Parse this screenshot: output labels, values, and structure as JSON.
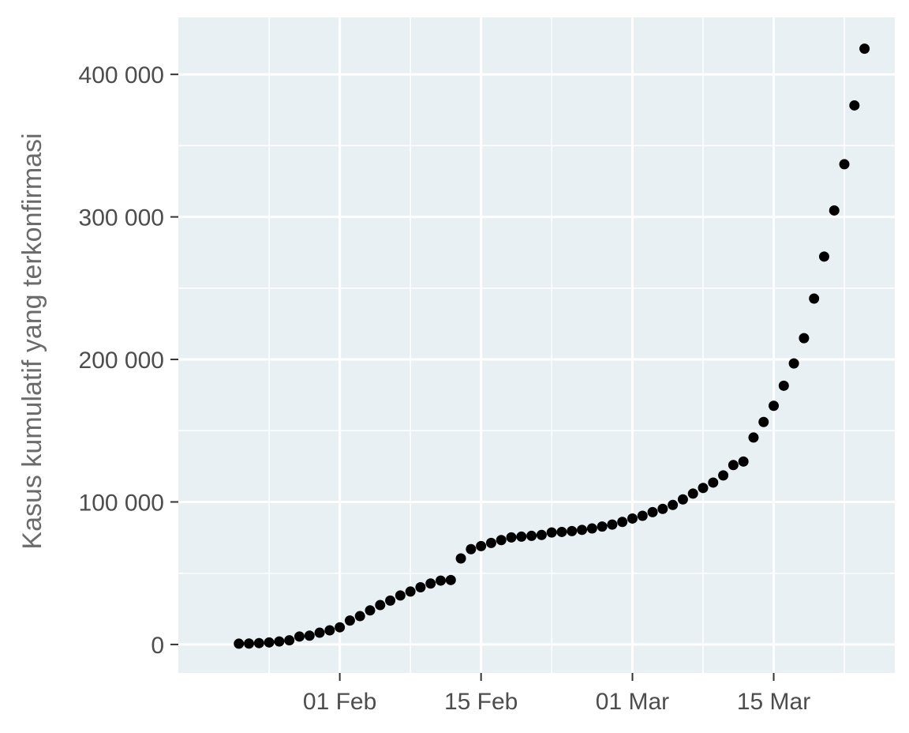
{
  "chart_data": {
    "type": "scatter",
    "title": "",
    "xlabel": "",
    "ylabel": "Kasus kumulatif yang terkonfirmasi",
    "x_type": "date",
    "xlim": [
      "2020-01-16",
      "2020-03-27"
    ],
    "ylim": [
      -20000,
      440000
    ],
    "x_ticks": [
      {
        "date": "2020-02-01",
        "label": "01 Feb"
      },
      {
        "date": "2020-02-15",
        "label": "15 Feb"
      },
      {
        "date": "2020-03-01",
        "label": "01 Mar"
      },
      {
        "date": "2020-03-15",
        "label": "15 Mar"
      }
    ],
    "x_minor_gridlines": [
      "2020-01-25",
      "2020-02-08",
      "2020-02-22",
      "2020-03-08",
      "2020-03-22"
    ],
    "y_ticks": [
      {
        "value": 0,
        "label": "0"
      },
      {
        "value": 100000,
        "label": "100 000"
      },
      {
        "value": 200000,
        "label": "200 000"
      },
      {
        "value": 300000,
        "label": "300 000"
      },
      {
        "value": 400000,
        "label": "400 000"
      }
    ],
    "y_minor_gridlines": [
      50000,
      150000,
      250000,
      350000
    ],
    "grid": true,
    "colors": {
      "panel": "#e8f0f4",
      "grid": "#ffffff",
      "point": "#000000"
    },
    "series": [
      {
        "x": [
          "2020-01-22",
          "2020-01-23",
          "2020-01-24",
          "2020-01-25",
          "2020-01-26",
          "2020-01-27",
          "2020-01-28",
          "2020-01-29",
          "2020-01-30",
          "2020-01-31",
          "2020-02-01",
          "2020-02-02",
          "2020-02-03",
          "2020-02-04",
          "2020-02-05",
          "2020-02-06",
          "2020-02-07",
          "2020-02-08",
          "2020-02-09",
          "2020-02-10",
          "2020-02-11",
          "2020-02-12",
          "2020-02-13",
          "2020-02-14",
          "2020-02-15",
          "2020-02-16",
          "2020-02-17",
          "2020-02-18",
          "2020-02-19",
          "2020-02-20",
          "2020-02-21",
          "2020-02-22",
          "2020-02-23",
          "2020-02-24",
          "2020-02-25",
          "2020-02-26",
          "2020-02-27",
          "2020-02-28",
          "2020-02-29",
          "2020-03-01",
          "2020-03-02",
          "2020-03-03",
          "2020-03-04",
          "2020-03-05",
          "2020-03-06",
          "2020-03-07",
          "2020-03-08",
          "2020-03-09",
          "2020-03-10",
          "2020-03-11",
          "2020-03-12",
          "2020-03-13",
          "2020-03-14",
          "2020-03-15",
          "2020-03-16",
          "2020-03-17",
          "2020-03-18",
          "2020-03-19",
          "2020-03-20",
          "2020-03-21",
          "2020-03-22",
          "2020-03-23",
          "2020-03-24"
        ],
        "y": [
          555,
          654,
          941,
          1434,
          2118,
          2927,
          5578,
          6166,
          8234,
          9927,
          12038,
          16787,
          19881,
          23892,
          27635,
          30794,
          34391,
          37120,
          40150,
          42762,
          44802,
          45221,
          60368,
          66885,
          69030,
          71224,
          73258,
          75136,
          75639,
          76197,
          76819,
          78572,
          78958,
          79561,
          80406,
          81388,
          82746,
          84112,
          86011,
          88369,
          90306,
          92840,
          95120,
          97886,
          101801,
          105847,
          109821,
          113590,
          118620,
          125875,
          128343,
          145193,
          156099,
          167447,
          181546,
          197168,
          214915,
          242713,
          272167,
          304528,
          336953,
          378235,
          418045
        ]
      }
    ]
  }
}
